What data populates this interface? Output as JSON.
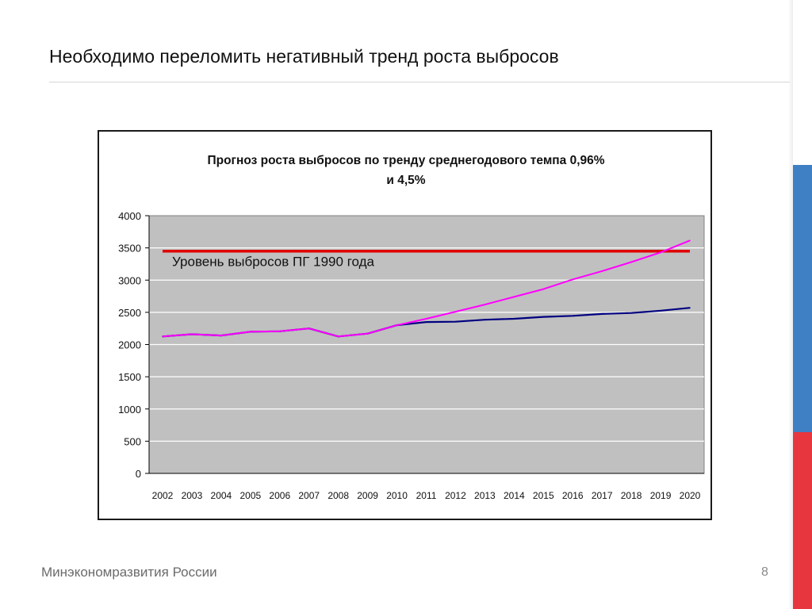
{
  "slide": {
    "title": "Необходимо переломить негативный тренд роста выбросов",
    "footer": "Минэкономразвития России",
    "page_number": "8"
  },
  "colors": {
    "plot_bg": "#c0c0c0",
    "grid": "#ffffff",
    "trend_low": "#000080",
    "trend_high": "#ff00ff",
    "level_1990": "#e00000",
    "flag_blue": "#3f7fc3",
    "flag_red": "#e8363f"
  },
  "chart_data": {
    "type": "line",
    "title_lines": [
      "Прогноз роста выбросов по тренду среднегодового темпа 0,96%",
      "и 4,5%"
    ],
    "categories": [
      "2002",
      "2003",
      "2004",
      "2005",
      "2006",
      "2007",
      "2008",
      "2009",
      "2010",
      "2011",
      "2012",
      "2013",
      "2014",
      "2015",
      "2016",
      "2017",
      "2018",
      "2019",
      "2020"
    ],
    "ylim": [
      0,
      4000
    ],
    "yticks": [
      0,
      500,
      1000,
      1500,
      2000,
      2500,
      3000,
      3500,
      4000
    ],
    "grid": true,
    "series": [
      {
        "color_key": "trend_low",
        "values": [
          2125,
          2160,
          2140,
          2200,
          2205,
          2250,
          2125,
          2170,
          2300,
          2350,
          2355,
          2385,
          2400,
          2430,
          2445,
          2475,
          2490,
          2525,
          2570
        ]
      },
      {
        "color_key": "trend_high",
        "values": [
          2125,
          2160,
          2140,
          2200,
          2205,
          2250,
          2125,
          2170,
          2300,
          2400,
          2510,
          2620,
          2740,
          2860,
          3010,
          3140,
          3280,
          3430,
          3615
        ]
      }
    ],
    "reference_line": {
      "value": 3450,
      "label": "Уровень выбросов ПГ 1990 года"
    }
  }
}
